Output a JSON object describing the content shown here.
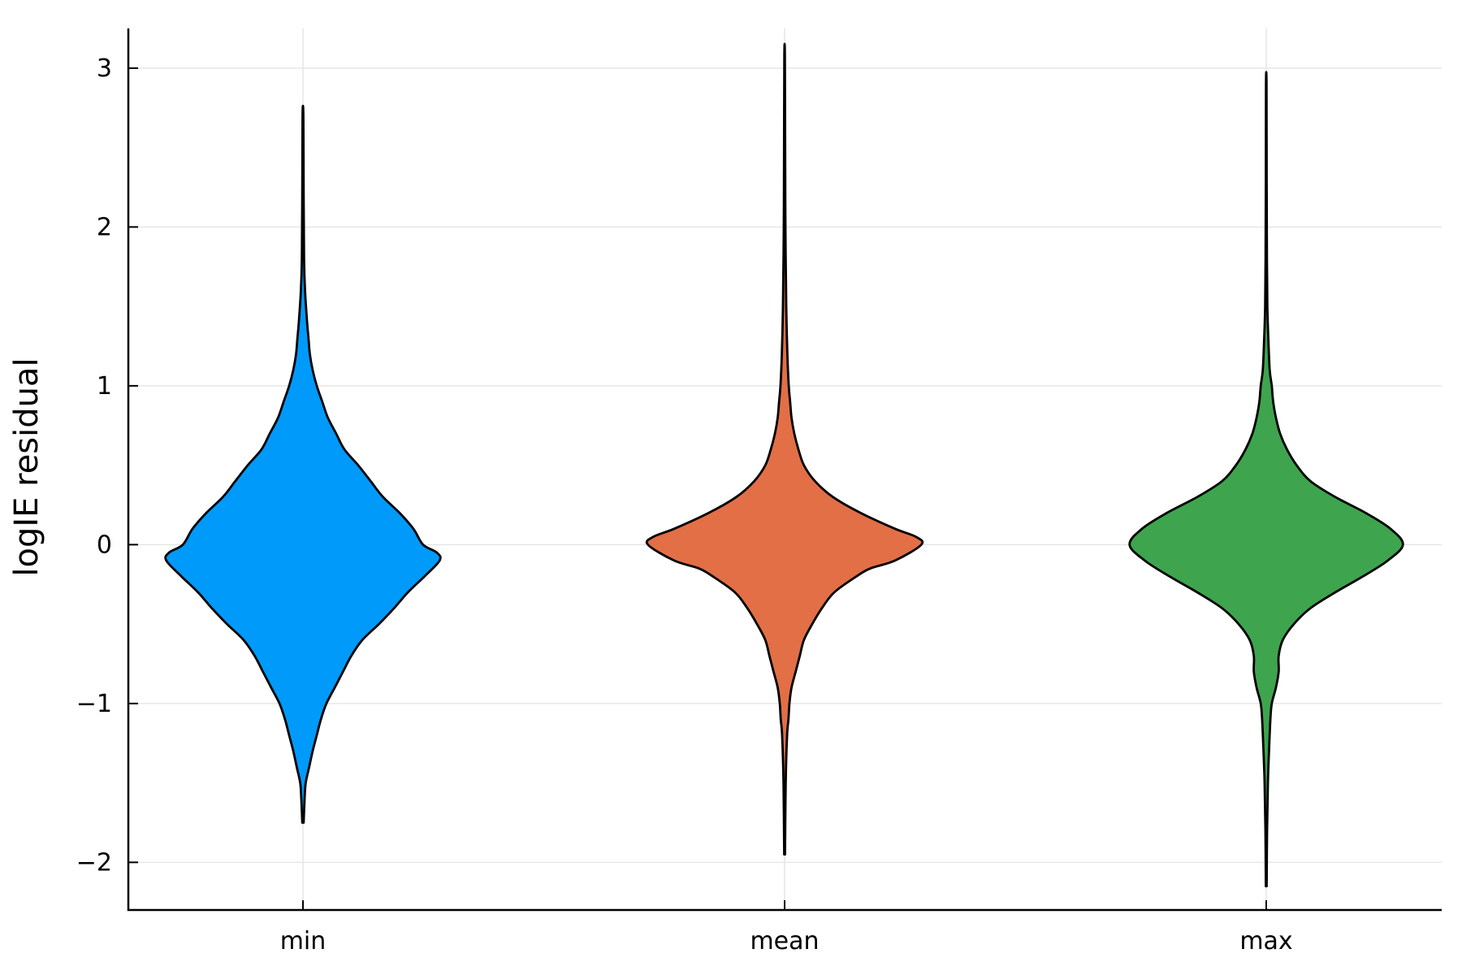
{
  "chart_data": {
    "type": "violin",
    "title": "",
    "xlabel": "",
    "ylabel": "logIE residual",
    "ylim": [
      -2.3,
      3.25
    ],
    "y_ticks": [
      -2,
      -1,
      0,
      1,
      2,
      3
    ],
    "y_tick_labels": [
      "−2",
      "−1",
      "0",
      "1",
      "2",
      "3"
    ],
    "grid": true,
    "legend": false,
    "categories": [
      "min",
      "mean",
      "max"
    ],
    "series": [
      {
        "category": "min",
        "color": "#009AFA",
        "min": -1.75,
        "max": 2.7,
        "density_profile": [
          [
            -1.75,
            0.005
          ],
          [
            -1.6,
            0.012
          ],
          [
            -1.5,
            0.02
          ],
          [
            -1.4,
            0.045
          ],
          [
            -1.3,
            0.07
          ],
          [
            -1.2,
            0.1
          ],
          [
            -1.1,
            0.13
          ],
          [
            -1.0,
            0.17
          ],
          [
            -0.9,
            0.23
          ],
          [
            -0.8,
            0.29
          ],
          [
            -0.7,
            0.35
          ],
          [
            -0.6,
            0.43
          ],
          [
            -0.5,
            0.55
          ],
          [
            -0.4,
            0.66
          ],
          [
            -0.3,
            0.76
          ],
          [
            -0.2,
            0.88
          ],
          [
            -0.1,
            0.99
          ],
          [
            -0.05,
            0.97
          ],
          [
            0.0,
            0.87
          ],
          [
            0.1,
            0.8
          ],
          [
            0.2,
            0.7
          ],
          [
            0.3,
            0.58
          ],
          [
            0.4,
            0.49
          ],
          [
            0.5,
            0.4
          ],
          [
            0.6,
            0.3
          ],
          [
            0.7,
            0.24
          ],
          [
            0.8,
            0.18
          ],
          [
            0.9,
            0.14
          ],
          [
            1.0,
            0.1
          ],
          [
            1.1,
            0.07
          ],
          [
            1.2,
            0.05
          ],
          [
            1.3,
            0.04
          ],
          [
            1.4,
            0.03
          ],
          [
            1.6,
            0.015
          ],
          [
            1.8,
            0.008
          ],
          [
            2.2,
            0.005
          ],
          [
            2.7,
            0.003
          ]
        ]
      },
      {
        "category": "mean",
        "color": "#E26F46",
        "min": -1.95,
        "max": 3.08,
        "density_profile": [
          [
            -1.95,
            0.003
          ],
          [
            -1.5,
            0.008
          ],
          [
            -1.2,
            0.018
          ],
          [
            -1.1,
            0.028
          ],
          [
            -1.0,
            0.035
          ],
          [
            -0.9,
            0.05
          ],
          [
            -0.8,
            0.08
          ],
          [
            -0.7,
            0.11
          ],
          [
            -0.6,
            0.14
          ],
          [
            -0.5,
            0.2
          ],
          [
            -0.4,
            0.27
          ],
          [
            -0.3,
            0.36
          ],
          [
            -0.2,
            0.52
          ],
          [
            -0.15,
            0.62
          ],
          [
            -0.1,
            0.8
          ],
          [
            0.0,
            0.99
          ],
          [
            0.05,
            0.95
          ],
          [
            0.1,
            0.8
          ],
          [
            0.2,
            0.55
          ],
          [
            0.3,
            0.35
          ],
          [
            0.4,
            0.22
          ],
          [
            0.5,
            0.14
          ],
          [
            0.6,
            0.1
          ],
          [
            0.7,
            0.07
          ],
          [
            0.8,
            0.05
          ],
          [
            0.9,
            0.04
          ],
          [
            1.0,
            0.03
          ],
          [
            1.2,
            0.02
          ],
          [
            1.5,
            0.012
          ],
          [
            2.0,
            0.006
          ],
          [
            2.5,
            0.004
          ],
          [
            3.08,
            0.002
          ]
        ]
      },
      {
        "category": "max",
        "color": "#3EA44E",
        "min": -2.15,
        "max": 2.9,
        "density_profile": [
          [
            -2.15,
            0.003
          ],
          [
            -1.8,
            0.006
          ],
          [
            -1.5,
            0.012
          ],
          [
            -1.3,
            0.02
          ],
          [
            -1.1,
            0.03
          ],
          [
            -1.0,
            0.04
          ],
          [
            -0.9,
            0.07
          ],
          [
            -0.8,
            0.09
          ],
          [
            -0.7,
            0.09
          ],
          [
            -0.6,
            0.12
          ],
          [
            -0.5,
            0.2
          ],
          [
            -0.4,
            0.32
          ],
          [
            -0.3,
            0.5
          ],
          [
            -0.2,
            0.7
          ],
          [
            -0.1,
            0.88
          ],
          [
            0.0,
            0.99
          ],
          [
            0.1,
            0.9
          ],
          [
            0.2,
            0.72
          ],
          [
            0.3,
            0.5
          ],
          [
            0.4,
            0.32
          ],
          [
            0.5,
            0.22
          ],
          [
            0.6,
            0.15
          ],
          [
            0.7,
            0.1
          ],
          [
            0.8,
            0.07
          ],
          [
            0.9,
            0.05
          ],
          [
            1.0,
            0.04
          ],
          [
            1.1,
            0.025
          ],
          [
            1.3,
            0.015
          ],
          [
            1.5,
            0.008
          ],
          [
            1.8,
            0.005
          ],
          [
            2.3,
            0.003
          ],
          [
            2.9,
            0.002
          ]
        ]
      }
    ]
  }
}
